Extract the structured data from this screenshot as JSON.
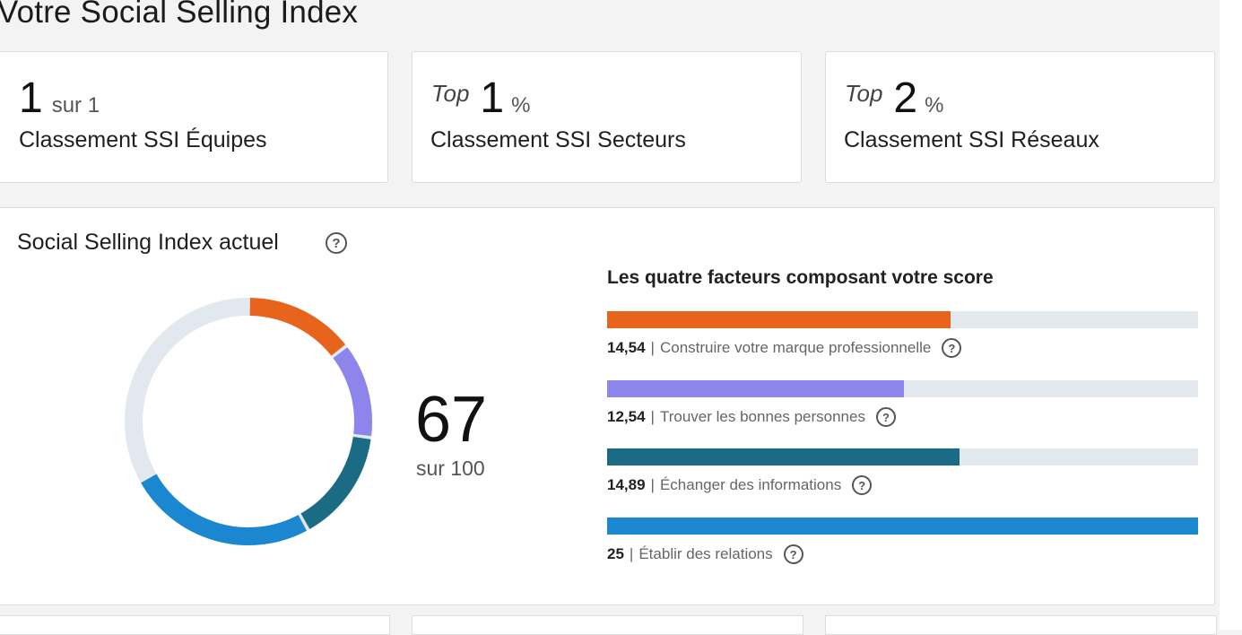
{
  "page": {
    "title": "Votre Social Selling Index"
  },
  "rankings": [
    {
      "prefix": "",
      "value": "1",
      "suffix": "sur 1",
      "label": "Classement SSI Équipes"
    },
    {
      "prefix": "Top",
      "value": "1",
      "suffix": "%",
      "label": "Classement SSI Secteurs"
    },
    {
      "prefix": "Top",
      "value": "2",
      "suffix": "%",
      "label": "Classement SSI Réseaux"
    }
  ],
  "ssi": {
    "title": "Social Selling Index actuel",
    "help_icon": "question-circle-icon",
    "score": "67",
    "score_suffix": "sur 100",
    "max_per_factor": 25,
    "factors_title": "Les quatre facteurs composant votre score",
    "factors": [
      {
        "value": "14,54",
        "label": "Construire votre marque professionnelle",
        "numeric": 14.54,
        "color": "#e8631c"
      },
      {
        "value": "12,54",
        "label": "Trouver les bonnes personnes",
        "numeric": 12.54,
        "color": "#8b85ec"
      },
      {
        "value": "14,89",
        "label": "Échanger des informations",
        "numeric": 14.89,
        "color": "#1b6b85"
      },
      {
        "value": "25",
        "label": "Établir des relations",
        "numeric": 25,
        "color": "#1b87d0"
      }
    ],
    "track_color": "#e3e8ef"
  }
}
